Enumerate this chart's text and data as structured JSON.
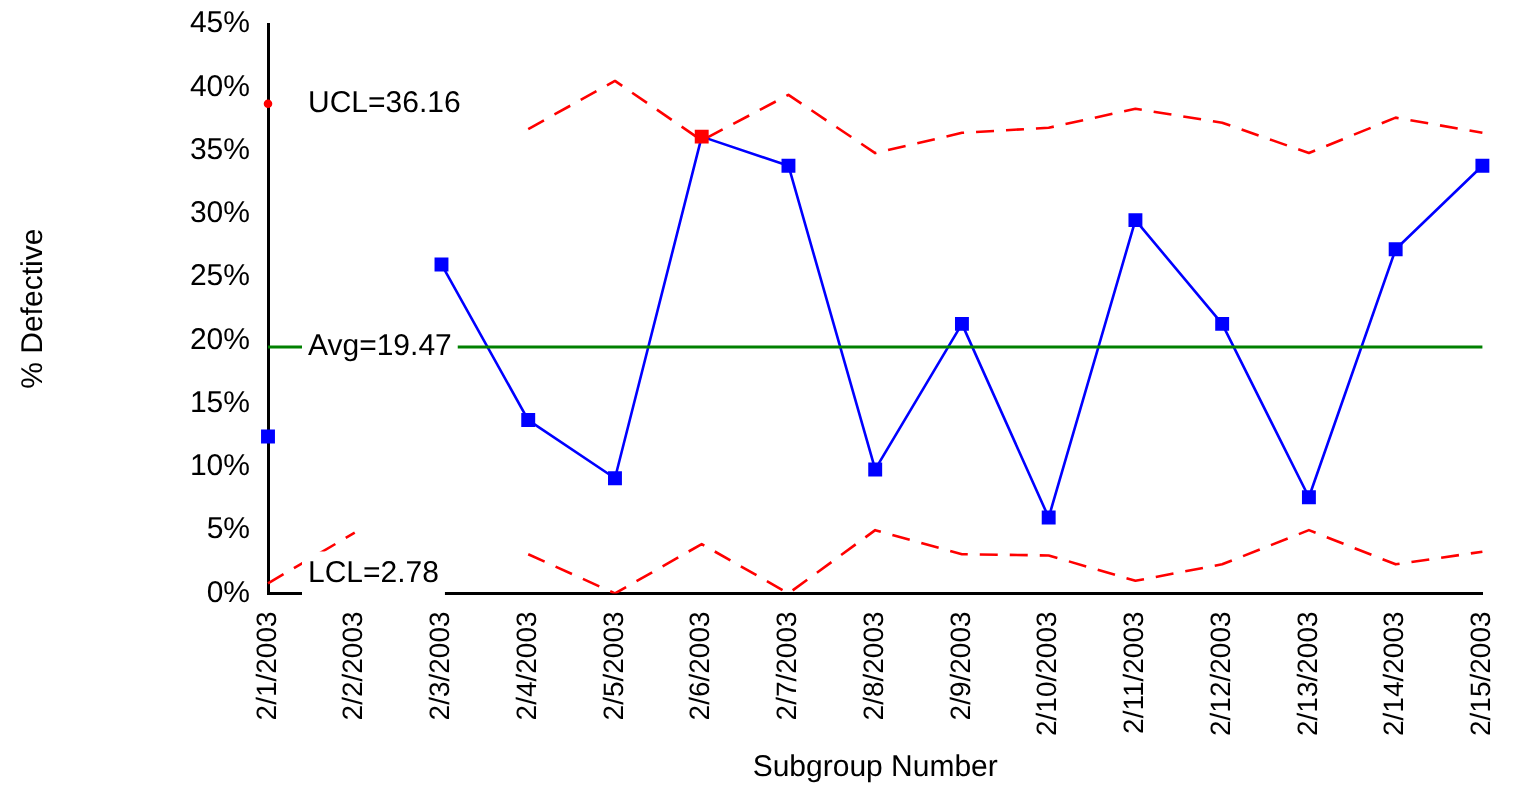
{
  "chart_data": {
    "type": "line",
    "xlabel": "Subgroup Number",
    "ylabel": "% Defective",
    "categories": [
      "2/1/2003",
      "2/2/2003",
      "2/3/2003",
      "2/4/2003",
      "2/5/2003",
      "2/6/2003",
      "2/7/2003",
      "2/8/2003",
      "2/9/2003",
      "2/10/2003",
      "2/11/2003",
      "2/12/2003",
      "2/13/2003",
      "2/14/2003",
      "2/15/2003"
    ],
    "series": [
      {
        "color": "#0000ff",
        "colors": [
          "#0000ff",
          null,
          "#0000ff",
          "#0000ff",
          "#0000ff",
          "#ff0000",
          "#0000ff",
          "#0000ff",
          "#0000ff",
          "#0000ff",
          "#0000ff",
          "#0000ff",
          "#0000ff",
          "#0000ff",
          "#0000ff"
        ],
        "marker": "square",
        "line_style": "solid",
        "values": [
          12.4,
          null,
          26.0,
          13.7,
          9.1,
          36.1,
          33.8,
          9.8,
          21.3,
          6.0,
          29.5,
          21.3,
          7.6,
          27.2,
          33.8
        ]
      },
      {
        "name": "UCL=36.16",
        "color": "#ff0000",
        "marker": "none",
        "line_style": "dashed",
        "values": [
          38.7,
          null,
          null,
          36.7,
          40.5,
          35.8,
          39.4,
          34.8,
          36.4,
          36.8,
          38.3,
          37.2,
          34.8,
          37.6,
          36.4
        ]
      },
      {
        "name": "LCL=2.78",
        "color": "#ff0000",
        "marker": "none",
        "line_style": "dashed",
        "values": [
          0.8,
          4.8,
          null,
          3.1,
          0,
          3.9,
          0,
          5.0,
          3.1,
          3.0,
          1.0,
          2.3,
          5.0,
          2.3,
          3.3
        ]
      }
    ],
    "ylim": [
      0,
      45
    ],
    "yticks": [
      {
        "value": 0,
        "label": "0%"
      },
      {
        "value": 5,
        "label": "5%"
      },
      {
        "value": 10,
        "label": "10%"
      },
      {
        "value": 15,
        "label": "15%"
      },
      {
        "value": 20,
        "label": "20%"
      },
      {
        "value": 25,
        "label": "25%"
      },
      {
        "value": 30,
        "label": "30%"
      },
      {
        "value": 35,
        "label": "35%"
      },
      {
        "value": 40,
        "label": "40%"
      },
      {
        "value": 45,
        "label": "45%"
      }
    ],
    "ref_lines": [
      {
        "axis": "y",
        "value": 19.47,
        "label": "Avg=19.47",
        "color": "#008000",
        "line_style": "solid"
      }
    ],
    "grid": false,
    "legend": false
  }
}
